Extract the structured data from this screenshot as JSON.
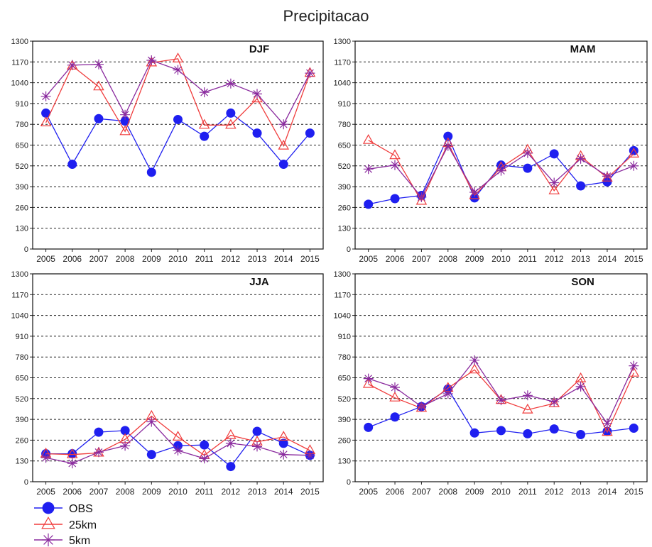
{
  "title": "Precipitacao",
  "colors": {
    "OBS": "#1f1ff0",
    "25km": "#f03c3c",
    "5km": "#8a2a9e"
  },
  "legend": {
    "position": "bottom-left",
    "items": [
      {
        "label": "OBS",
        "color": "#1f1ff0",
        "marker": "circle"
      },
      {
        "label": "25km",
        "color": "#f03c3c",
        "marker": "triangle"
      },
      {
        "label": "5km",
        "color": "#8a2a9e",
        "marker": "star"
      }
    ]
  },
  "chart_data": [
    {
      "type": "line",
      "title": "DJF",
      "x": [
        "2005",
        "2006",
        "2007",
        "2008",
        "2009",
        "2010",
        "2011",
        "2012",
        "2013",
        "2014",
        "2015"
      ],
      "yticks": [
        0,
        130,
        260,
        390,
        520,
        650,
        780,
        910,
        1040,
        1170,
        1300
      ],
      "ylim": [
        0,
        1300
      ],
      "grid": "horizontal-dashed",
      "series": [
        {
          "name": "OBS",
          "values": [
            850,
            530,
            815,
            800,
            480,
            810,
            705,
            850,
            725,
            530,
            725
          ]
        },
        {
          "name": "25km",
          "values": [
            790,
            1145,
            1015,
            735,
            1165,
            1190,
            775,
            775,
            940,
            645,
            1100
          ]
        },
        {
          "name": "5km",
          "values": [
            955,
            1150,
            1155,
            840,
            1180,
            1120,
            980,
            1035,
            970,
            780,
            1100
          ]
        }
      ]
    },
    {
      "type": "line",
      "title": "MAM",
      "x": [
        "2005",
        "2006",
        "2007",
        "2008",
        "2009",
        "2010",
        "2011",
        "2012",
        "2013",
        "2014",
        "2015"
      ],
      "yticks": [
        0,
        130,
        260,
        390,
        520,
        650,
        780,
        910,
        1040,
        1170,
        1300
      ],
      "ylim": [
        0,
        1300
      ],
      "grid": "horizontal-dashed",
      "series": [
        {
          "name": "OBS",
          "values": [
            280,
            315,
            335,
            705,
            320,
            525,
            505,
            595,
            395,
            420,
            615
          ]
        },
        {
          "name": "25km",
          "values": [
            680,
            585,
            300,
            660,
            335,
            510,
            620,
            365,
            580,
            445,
            595
          ]
        },
        {
          "name": "5km",
          "values": [
            500,
            525,
            325,
            645,
            355,
            490,
            600,
            415,
            565,
            455,
            520
          ]
        }
      ]
    },
    {
      "type": "line",
      "title": "JJA",
      "x": [
        "2005",
        "2006",
        "2007",
        "2008",
        "2009",
        "2010",
        "2011",
        "2012",
        "2013",
        "2014",
        "2015"
      ],
      "yticks": [
        0,
        130,
        260,
        390,
        520,
        650,
        780,
        910,
        1040,
        1170,
        1300
      ],
      "ylim": [
        0,
        1300
      ],
      "grid": "horizontal-dashed",
      "series": [
        {
          "name": "OBS",
          "values": [
            175,
            175,
            310,
            320,
            170,
            225,
            230,
            95,
            315,
            240,
            165
          ]
        },
        {
          "name": "25km",
          "values": [
            175,
            170,
            180,
            265,
            410,
            280,
            165,
            290,
            250,
            280,
            195
          ]
        },
        {
          "name": "5km",
          "values": [
            150,
            115,
            185,
            225,
            375,
            195,
            145,
            240,
            220,
            170,
            165
          ]
        }
      ]
    },
    {
      "type": "line",
      "title": "SON",
      "x": [
        "2005",
        "2006",
        "2007",
        "2008",
        "2009",
        "2010",
        "2011",
        "2012",
        "2013",
        "2014",
        "2015"
      ],
      "yticks": [
        0,
        130,
        260,
        390,
        520,
        650,
        780,
        910,
        1040,
        1170,
        1300
      ],
      "ylim": [
        0,
        1300
      ],
      "grid": "horizontal-dashed",
      "series": [
        {
          "name": "OBS",
          "values": [
            340,
            405,
            470,
            580,
            305,
            320,
            300,
            330,
            295,
            315,
            335
          ]
        },
        {
          "name": "25km",
          "values": [
            610,
            525,
            460,
            585,
            700,
            510,
            450,
            490,
            645,
            310,
            680
          ]
        },
        {
          "name": "5km",
          "values": [
            645,
            590,
            470,
            550,
            760,
            510,
            540,
            500,
            595,
            365,
            725
          ]
        }
      ]
    }
  ]
}
